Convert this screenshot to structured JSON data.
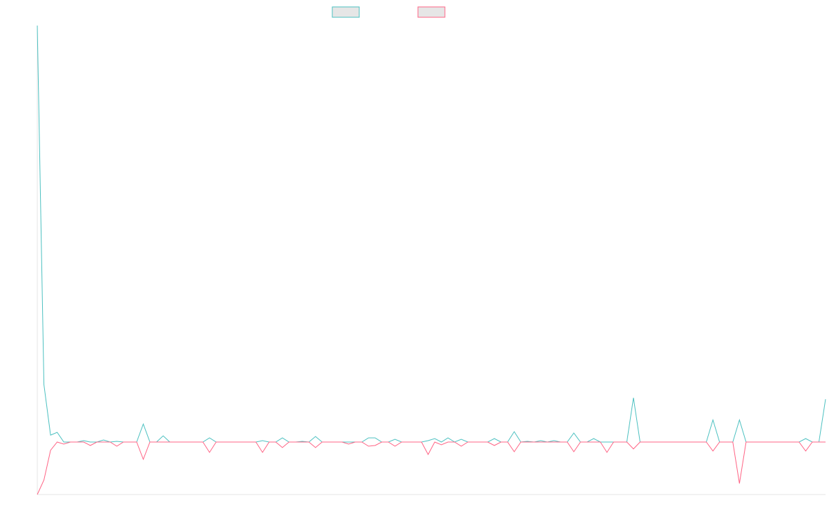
{
  "chart_data": {
    "type": "line",
    "categories": [
      null,
      null,
      null,
      null,
      null,
      null,
      null,
      null,
      null,
      null,
      null,
      null,
      null,
      null,
      null,
      null,
      null,
      null,
      null,
      null,
      null,
      null,
      null,
      null,
      null,
      null,
      null,
      null,
      null,
      null,
      null,
      null,
      null,
      null,
      null,
      null,
      null,
      null,
      null,
      null,
      null,
      null,
      null,
      null,
      null,
      null,
      null,
      null,
      null,
      null,
      null,
      null,
      null,
      null,
      null,
      null,
      null,
      null,
      null,
      null,
      null,
      null,
      null,
      null,
      null,
      null,
      null,
      null,
      null,
      null,
      null,
      null,
      null,
      null,
      null,
      null,
      null,
      null,
      null,
      null,
      null,
      null,
      null,
      null,
      null,
      null,
      null,
      null,
      null,
      null,
      null,
      null,
      null,
      null,
      null,
      null,
      null,
      null,
      null,
      null,
      null,
      null,
      null,
      null,
      null,
      null,
      null,
      null,
      null,
      null,
      null,
      null,
      null,
      null,
      null,
      null,
      null,
      null,
      null,
      null
    ],
    "series": [
      {
        "color": "#4bc0c0",
        "values": [
          603,
          83,
          10,
          14,
          0,
          0,
          0,
          2,
          0,
          0,
          3,
          0,
          1,
          0,
          0,
          0,
          26,
          0,
          0,
          9,
          0,
          0,
          0,
          0,
          0,
          0,
          6,
          0,
          0,
          0,
          0,
          0,
          0,
          0,
          2,
          0,
          0,
          6,
          0,
          0,
          1,
          0,
          8,
          0,
          0,
          0,
          0,
          0,
          0,
          0,
          6,
          6,
          0,
          0,
          4,
          0,
          0,
          0,
          0,
          2,
          5,
          0,
          6,
          0,
          4,
          0,
          0,
          0,
          0,
          5,
          0,
          0,
          15,
          0,
          1,
          0,
          2,
          0,
          2,
          0,
          0,
          13,
          0,
          0,
          5,
          0,
          0,
          0,
          0,
          0,
          64,
          0,
          0,
          0,
          0,
          0,
          0,
          0,
          0,
          0,
          0,
          0,
          32,
          0,
          0,
          0,
          32,
          0,
          0,
          0,
          0,
          0,
          0,
          0,
          0,
          0,
          5,
          0,
          0,
          62
        ]
      },
      {
        "color": "#ff6384",
        "values": [
          -76,
          -55,
          -12,
          0,
          -3,
          0,
          0,
          0,
          -5,
          0,
          0,
          0,
          -6,
          0,
          0,
          0,
          -25,
          0,
          0,
          0,
          0,
          0,
          0,
          0,
          0,
          0,
          -15,
          0,
          0,
          0,
          0,
          0,
          0,
          0,
          -15,
          0,
          0,
          -8,
          0,
          0,
          0,
          0,
          -8,
          0,
          0,
          0,
          0,
          -3,
          0,
          0,
          -6,
          -5,
          0,
          0,
          -6,
          0,
          0,
          0,
          0,
          -18,
          0,
          -4,
          0,
          0,
          -6,
          0,
          0,
          0,
          0,
          -5,
          0,
          0,
          -14,
          0,
          0,
          0,
          0,
          0,
          0,
          0,
          0,
          -14,
          0,
          0,
          0,
          0,
          -15,
          0,
          0,
          0,
          -10,
          0,
          0,
          0,
          0,
          0,
          0,
          0,
          0,
          0,
          0,
          0,
          -13,
          0,
          0,
          0,
          -60,
          0,
          0,
          0,
          0,
          0,
          0,
          0,
          0,
          0,
          -13,
          0,
          0,
          0
        ]
      }
    ],
    "ylim": [
      -76,
      603
    ],
    "legend": "top"
  }
}
